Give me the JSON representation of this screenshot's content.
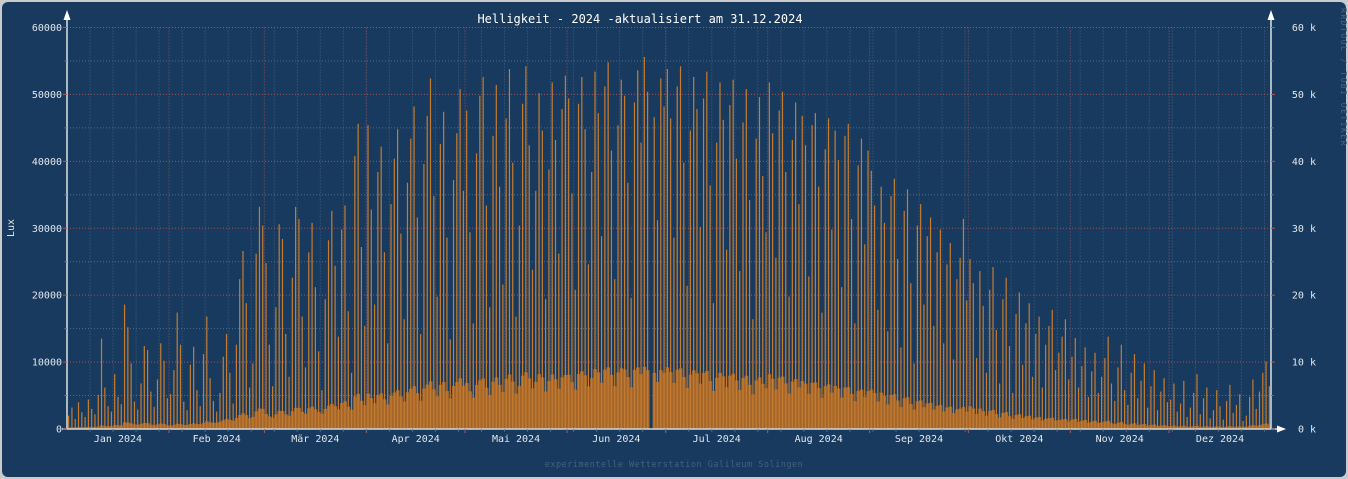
{
  "colors": {
    "background": "#183a5e",
    "frame": "#c9cbcd",
    "bar_max": "#c67c30",
    "area_avg": "#a4672b",
    "grid_major": "#aa5862",
    "grid_minor": "#5f7e9b",
    "axis": "#d2d7dc",
    "label": "#e2e7ec"
  },
  "chart_data": {
    "type": "bar",
    "title": "Helligkeit - 2024 -aktualisiert am 31.12.2024",
    "ylabel": "Lux",
    "xlabel": "",
    "footer": "experimentelle Wetterstation Galileum Solingen",
    "watermark": "RRDTOOL / TOBI OETIKER",
    "ylim": [
      0,
      60000
    ],
    "y_ticks_left": [
      "60000",
      "50000",
      "40000",
      "30000",
      "20000",
      "10000",
      "0"
    ],
    "y_ticks_right": [
      "60 k",
      "50 k",
      "40 k",
      "30 k",
      "20 k",
      "10 k",
      "0 k"
    ],
    "x_tick_labels": [
      "Jan 2024",
      "Feb 2024",
      "Mär 2024",
      "Apr 2024",
      "Mai 2024",
      "Jun 2024",
      "Jul 2024",
      "Aug 2024",
      "Sep 2024",
      "Okt 2024",
      "Nov 2024",
      "Dez 2024"
    ],
    "grid": "dotted; red major lines every 10000 Lux and at month starts; blue-gray minor lines every 5000 Lux and weekly",
    "legend_position": "none",
    "series_info": "One value per day of 2024: daily maximum brightness (thin bright bars) and daily average brightness (solid filled area derived from avg_profile control points per month); value 0 = data gap (late June)",
    "months": [
      {
        "label": "Jan 2024",
        "days": 31,
        "avg_profile": [
          400,
          600,
          1100,
          900
        ],
        "daily_max": [
          2000,
          3200,
          1500,
          4000,
          2500,
          1800,
          4400,
          3000,
          2200,
          5100,
          13500,
          6200,
          3400,
          2600,
          8200,
          4800,
          3700,
          18600,
          15200,
          9800,
          4100,
          2900,
          6800,
          12400,
          11800,
          5600,
          3300,
          7400,
          12800,
          10200,
          4600
        ]
      },
      {
        "label": "Feb 2024",
        "days": 29,
        "avg_profile": [
          900,
          1300,
          2200,
          3000
        ],
        "daily_max": [
          5200,
          8800,
          17400,
          12600,
          4100,
          2800,
          9600,
          12300,
          5800,
          3400,
          11200,
          16800,
          7600,
          4200,
          2600,
          5400,
          10800,
          14200,
          8400,
          3800,
          12600,
          22400,
          26600,
          18800,
          6200,
          9800,
          26200,
          33200,
          30400
        ]
      },
      {
        "label": "Mär 2024",
        "days": 31,
        "avg_profile": [
          2800,
          3600,
          4200,
          5200
        ],
        "daily_max": [
          24800,
          12600,
          6400,
          18200,
          30600,
          28400,
          14200,
          7800,
          22600,
          33200,
          31400,
          16800,
          9200,
          26400,
          30800,
          21200,
          11600,
          5800,
          19400,
          28200,
          32600,
          24400,
          13800,
          29800,
          33400,
          17600,
          8400,
          40800,
          45600,
          27200,
          15400
        ]
      },
      {
        "label": "Apr 2024",
        "days": 30,
        "avg_profile": [
          5400,
          6000,
          6800,
          7400
        ],
        "daily_max": [
          45400,
          32800,
          18600,
          38400,
          42200,
          26400,
          12800,
          33600,
          40400,
          44800,
          29200,
          16400,
          36800,
          43400,
          48200,
          31600,
          14200,
          39600,
          46800,
          52400,
          34800,
          19800,
          42600,
          47400,
          28600,
          13400,
          37200,
          44200,
          50800,
          35600
        ]
      },
      {
        "label": "Mai 2024",
        "days": 31,
        "avg_profile": [
          7000,
          7600,
          8200,
          7800
        ],
        "daily_max": [
          47600,
          29400,
          15800,
          41200,
          49800,
          52600,
          33400,
          18200,
          43800,
          51400,
          36200,
          21600,
          46400,
          53800,
          39800,
          16800,
          30400,
          48600,
          54200,
          42400,
          23800,
          35600,
          50200,
          44600,
          19400,
          38800,
          51800,
          43200,
          26200,
          47800,
          52800
        ]
      },
      {
        "label": "Jun 2024",
        "days": 30,
        "avg_profile": [
          8200,
          8800,
          9000,
          8600
        ],
        "daily_max": [
          49400,
          35200,
          20800,
          48600,
          52600,
          44800,
          24600,
          38400,
          53400,
          47200,
          28800,
          51200,
          54800,
          41600,
          22400,
          45400,
          52200,
          49800,
          36800,
          19600,
          48800,
          53600,
          42800,
          55600,
          50400,
          0,
          46600,
          31200,
          52400,
          48200
        ]
      },
      {
        "label": "Jul 2024",
        "days": 31,
        "avg_profile": [
          8800,
          8400,
          8000,
          7600
        ],
        "daily_max": [
          53800,
          46400,
          28600,
          51200,
          54200,
          39800,
          21400,
          44600,
          52600,
          47800,
          30200,
          49400,
          53400,
          36400,
          18800,
          42800,
          51800,
          46200,
          26800,
          48400,
          52200,
          40400,
          23600,
          45800,
          50800,
          34200,
          16400,
          43400,
          49600,
          37800,
          29400
        ]
      },
      {
        "label": "Aug 2024",
        "days": 31,
        "avg_profile": [
          7800,
          7200,
          6600,
          6000
        ],
        "daily_max": [
          51800,
          44200,
          25600,
          47600,
          50400,
          38400,
          19800,
          43200,
          48800,
          33600,
          46800,
          42400,
          22800,
          45400,
          47200,
          36200,
          17400,
          41800,
          46400,
          29800,
          44600,
          40200,
          21200,
          43800,
          45600,
          31400,
          15800,
          39400,
          43400,
          27600,
          41600
        ]
      },
      {
        "label": "Sep 2024",
        "days": 30,
        "avg_profile": [
          5600,
          4800,
          4000,
          3400
        ],
        "daily_max": [
          38600,
          33400,
          17800,
          36200,
          30800,
          14600,
          34800,
          37400,
          25400,
          12200,
          32600,
          35800,
          21800,
          9800,
          30400,
          33600,
          18600,
          28800,
          31600,
          15400,
          26400,
          29800,
          12800,
          24600,
          27800,
          10400,
          22400,
          25600,
          31400,
          19200
        ]
      },
      {
        "label": "Okt 2024",
        "days": 31,
        "avg_profile": [
          3200,
          2600,
          2100,
          1700
        ],
        "daily_max": [
          25400,
          21800,
          10600,
          23600,
          18400,
          8400,
          20800,
          24200,
          14800,
          6800,
          19400,
          22600,
          12400,
          5400,
          17200,
          20400,
          9600,
          15800,
          18800,
          7800,
          14200,
          16800,
          6200,
          12600,
          15400,
          17800,
          8800,
          11400,
          13800,
          16400,
          7400
        ]
      },
      {
        "label": "Nov 2024",
        "days": 30,
        "avg_profile": [
          1500,
          1200,
          900,
          700
        ],
        "daily_max": [
          10800,
          13600,
          6200,
          9400,
          12200,
          4800,
          8600,
          11400,
          5400,
          7800,
          10600,
          13800,
          6800,
          4200,
          9200,
          12600,
          5800,
          3600,
          8400,
          11200,
          4600,
          7200,
          9800,
          3200,
          6400,
          8800,
          2800,
          5600,
          7600,
          4000
        ]
      },
      {
        "label": "Dez 2024",
        "days": 31,
        "avg_profile": [
          600,
          500,
          500,
          800
        ],
        "daily_max": [
          4400,
          6800,
          2600,
          3800,
          7200,
          1800,
          3200,
          5400,
          8200,
          2200,
          4600,
          6200,
          1600,
          2800,
          5800,
          3400,
          1400,
          4200,
          6600,
          2400,
          3600,
          5200,
          1200,
          2000,
          4800,
          7400,
          3000,
          5600,
          8400,
          10100,
          6400
        ]
      }
    ]
  }
}
